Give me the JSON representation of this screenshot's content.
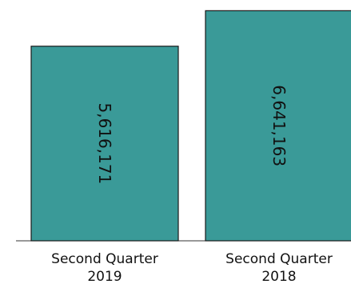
{
  "chart_data": {
    "type": "bar",
    "title": "",
    "xlabel": "",
    "ylabel": "",
    "categories": [
      [
        "Second Quarter",
        "2019"
      ],
      [
        "Second Quarter",
        "2018"
      ]
    ],
    "values": [
      5616171,
      6641163
    ],
    "data_labels": [
      "5,616,171",
      "6,641,163"
    ],
    "ylim": [
      0,
      6950000
    ],
    "colors": {
      "bar": "#3a9a98",
      "bar_border": "#1a1a1a"
    },
    "grid": false,
    "legend": "none"
  }
}
